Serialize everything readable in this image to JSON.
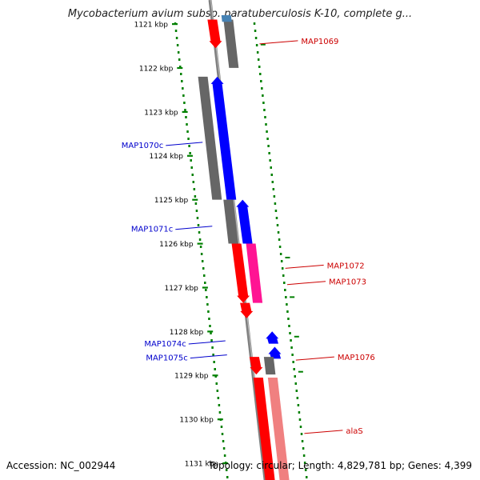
{
  "title": "Mycobacterium avium subsp. paratuberculosis K-10, complete g...",
  "footer": {
    "accession": "Accession: NC_002944",
    "summary": "Topology: circular; Length: 4,829,781 bp; Genes: 4,399"
  },
  "colors": {
    "forward_gene": "#ff0000",
    "reverse_gene": "#0000ff",
    "cds": "#666666",
    "rna": "#ff1493",
    "trna": "#f08080",
    "steelblue": "#4682b4",
    "axis": "#808080",
    "ticks": "#008000",
    "forward_label": "#cc0000",
    "reverse_label": "#0000cc"
  },
  "scale": {
    "ticks": [
      {
        "kbp": 1121,
        "label": "1121 kbp"
      },
      {
        "kbp": 1122,
        "label": "1122 kbp"
      },
      {
        "kbp": 1123,
        "label": "1123 kbp"
      },
      {
        "kbp": 1124,
        "label": "1124 kbp"
      },
      {
        "kbp": 1125,
        "label": "1125 kbp"
      },
      {
        "kbp": 1126,
        "label": "1126 kbp"
      },
      {
        "kbp": 1127,
        "label": "1127 kbp"
      },
      {
        "kbp": 1128,
        "label": "1128 kbp"
      },
      {
        "kbp": 1129,
        "label": "1129 kbp"
      },
      {
        "kbp": 1130,
        "label": "1130 kbp"
      },
      {
        "kbp": 1131,
        "label": "1131 kbp"
      }
    ]
  },
  "labels": {
    "forward": [
      {
        "kbp": 1121.38,
        "text": "MAP1069"
      },
      {
        "kbp": 1126.49,
        "text": "MAP1072"
      },
      {
        "kbp": 1126.86,
        "text": "MAP1073"
      },
      {
        "kbp": 1128.58,
        "text": "MAP1076"
      },
      {
        "kbp": 1130.25,
        "text": "alaS"
      }
    ],
    "reverse": [
      {
        "kbp": 1123.73,
        "text": "MAP1070c"
      },
      {
        "kbp": 1125.64,
        "text": "MAP1071c"
      },
      {
        "kbp": 1128.25,
        "text": "MAP1074c"
      },
      {
        "kbp": 1128.57,
        "text": "MAP1075c"
      }
    ]
  }
}
